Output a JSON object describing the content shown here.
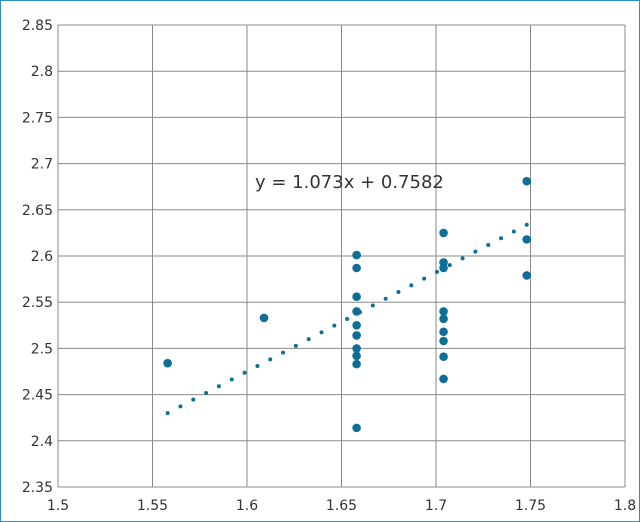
{
  "chart_data": {
    "type": "scatter",
    "title": "",
    "xlabel": "",
    "ylabel": "",
    "xlim": [
      1.5,
      1.8
    ],
    "ylim": [
      2.35,
      2.85
    ],
    "x_ticks": [
      "1.5",
      "1.55",
      "1.6",
      "1.65",
      "1.7",
      "1.75",
      "1.8"
    ],
    "y_ticks": [
      "2.35",
      "2.4",
      "2.45",
      "2.5",
      "2.55",
      "2.6",
      "2.65",
      "2.7",
      "2.75",
      "2.8",
      "2.85"
    ],
    "grid": true,
    "series": [
      {
        "points": [
          [
            1.558,
            2.484
          ],
          [
            1.609,
            2.533
          ],
          [
            1.658,
            2.414
          ],
          [
            1.658,
            2.483
          ],
          [
            1.658,
            2.492
          ],
          [
            1.658,
            2.5
          ],
          [
            1.658,
            2.514
          ],
          [
            1.658,
            2.525
          ],
          [
            1.658,
            2.54
          ],
          [
            1.658,
            2.556
          ],
          [
            1.658,
            2.587
          ],
          [
            1.658,
            2.601
          ],
          [
            1.704,
            2.467
          ],
          [
            1.704,
            2.491
          ],
          [
            1.704,
            2.508
          ],
          [
            1.704,
            2.518
          ],
          [
            1.704,
            2.532
          ],
          [
            1.704,
            2.54
          ],
          [
            1.704,
            2.587
          ],
          [
            1.704,
            2.593
          ],
          [
            1.704,
            2.625
          ],
          [
            1.748,
            2.579
          ],
          [
            1.748,
            2.618
          ],
          [
            1.748,
            2.681
          ]
        ],
        "color": "#0e6e96"
      }
    ],
    "trendline": {
      "equation": "y = 1.073x + 0.7582",
      "slope": 1.073,
      "intercept": 0.7582,
      "x_range": [
        1.558,
        1.748
      ],
      "style": "dotted",
      "color": "#0e6e96"
    }
  }
}
